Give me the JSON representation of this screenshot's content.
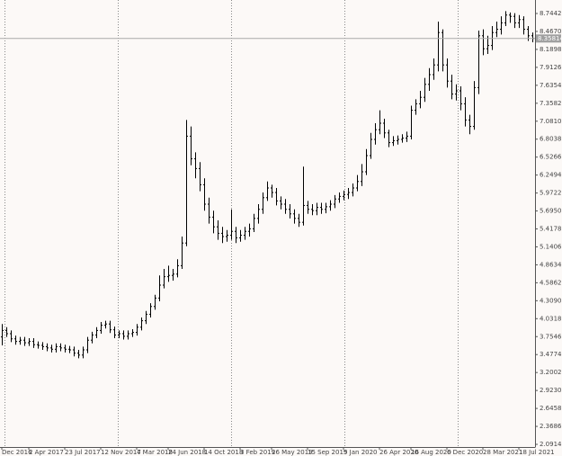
{
  "chart_data": {
    "type": "ohlc",
    "color": "#000000",
    "categories": [
      "Dec 2016",
      null,
      null,
      null,
      null,
      null,
      "2 Apr 2017",
      null,
      null,
      null,
      null,
      null,
      null,
      null,
      "23 Jul 2017",
      null,
      null,
      null,
      null,
      null,
      null,
      null,
      "12 Nov 2017",
      null,
      null,
      null,
      null,
      null,
      null,
      null,
      "4 Mar 2018",
      null,
      null,
      null,
      null,
      null,
      null,
      "24 Jun 2018",
      null,
      null,
      null,
      null,
      null,
      null,
      null,
      "14 Oct 2018",
      null,
      null,
      null,
      null,
      null,
      null,
      null,
      "3 Feb 2019",
      null,
      null,
      null,
      null,
      null,
      null,
      "26 May 2019",
      null,
      null,
      null,
      null,
      null,
      null,
      null,
      "15 Sep 2019",
      null,
      null,
      null,
      null,
      null,
      null,
      null,
      "5 Jan 2020",
      null,
      null,
      null,
      null,
      null,
      null,
      null,
      "26 Apr 2020",
      null,
      null,
      null,
      null,
      null,
      null,
      "16 Aug 2020",
      null,
      null,
      null,
      null,
      null,
      null,
      null,
      "6 Dec 2020",
      null,
      null,
      null,
      null,
      null,
      null,
      null,
      "28 Mar 2021",
      null,
      null,
      null,
      null,
      null,
      null,
      null,
      "18 Jul 2021",
      null,
      null,
      null
    ],
    "open": [
      3.75,
      3.85,
      3.8,
      3.72,
      3.68,
      3.7,
      3.66,
      3.68,
      3.63,
      3.62,
      3.6,
      3.58,
      3.56,
      3.6,
      3.58,
      3.56,
      3.55,
      3.5,
      3.47,
      3.55,
      3.7,
      3.78,
      3.85,
      3.93,
      3.95,
      3.86,
      3.78,
      3.8,
      3.76,
      3.8,
      3.82,
      3.9,
      4.0,
      4.1,
      4.22,
      4.35,
      4.55,
      4.68,
      4.7,
      4.72,
      4.85,
      5.2,
      6.85,
      6.5,
      6.35,
      6.1,
      5.8,
      5.6,
      5.45,
      5.35,
      5.3,
      5.32,
      5.38,
      5.28,
      5.32,
      5.38,
      5.42,
      5.58,
      5.72,
      5.9,
      6.05,
      5.98,
      5.85,
      5.8,
      5.72,
      5.65,
      5.58,
      5.52,
      5.78,
      5.72,
      5.7,
      5.75,
      5.72,
      5.76,
      5.8,
      5.88,
      5.92,
      5.95,
      5.98,
      6.05,
      6.15,
      6.3,
      6.55,
      6.8,
      6.95,
      7.05,
      6.9,
      6.75,
      6.78,
      6.8,
      6.82,
      6.85,
      7.25,
      7.35,
      7.45,
      7.65,
      7.8,
      7.95,
      8.45,
      7.95,
      7.7,
      7.5,
      7.55,
      7.35,
      7.1,
      7.0,
      7.6,
      8.4,
      8.2,
      8.25,
      8.45,
      8.5,
      8.6,
      8.72,
      8.7,
      8.6,
      8.65,
      8.5,
      8.4
    ],
    "high": [
      3.95,
      3.9,
      3.85,
      3.77,
      3.75,
      3.75,
      3.73,
      3.73,
      3.68,
      3.67,
      3.65,
      3.63,
      3.65,
      3.65,
      3.63,
      3.61,
      3.6,
      3.55,
      3.6,
      3.75,
      3.83,
      3.9,
      3.98,
      4.0,
      4.0,
      3.91,
      3.85,
      3.85,
      3.85,
      3.87,
      3.95,
      4.05,
      4.15,
      4.27,
      4.4,
      4.7,
      4.8,
      4.85,
      4.8,
      4.95,
      5.3,
      7.1,
      7.0,
      6.6,
      6.45,
      6.2,
      5.9,
      5.7,
      5.55,
      5.45,
      5.4,
      5.72,
      5.45,
      5.4,
      5.45,
      5.5,
      5.65,
      5.8,
      5.98,
      6.15,
      6.1,
      6.05,
      5.92,
      5.88,
      5.8,
      5.72,
      5.65,
      6.38,
      5.85,
      5.8,
      5.82,
      5.82,
      5.82,
      5.86,
      5.94,
      5.98,
      6.01,
      6.05,
      6.12,
      6.25,
      6.42,
      6.65,
      6.9,
      7.05,
      7.25,
      7.12,
      6.95,
      6.85,
      6.86,
      6.88,
      6.92,
      7.32,
      7.42,
      7.55,
      7.75,
      7.9,
      8.05,
      8.62,
      8.5,
      8.05,
      7.8,
      7.65,
      7.62,
      7.45,
      7.18,
      7.7,
      8.48,
      8.5,
      8.4,
      8.55,
      8.62,
      8.7,
      8.78,
      8.76,
      8.75,
      8.72,
      8.7,
      8.55,
      8.45
    ],
    "low": [
      3.62,
      3.75,
      3.67,
      3.63,
      3.63,
      3.61,
      3.61,
      3.58,
      3.57,
      3.55,
      3.53,
      3.51,
      3.51,
      3.53,
      3.51,
      3.5,
      3.45,
      3.42,
      3.42,
      3.5,
      3.65,
      3.73,
      3.8,
      3.88,
      3.81,
      3.73,
      3.73,
      3.71,
      3.71,
      3.75,
      3.77,
      3.85,
      3.95,
      4.05,
      4.17,
      4.3,
      4.5,
      4.6,
      4.62,
      4.67,
      4.8,
      5.15,
      6.4,
      6.2,
      6.0,
      5.7,
      5.5,
      5.35,
      5.25,
      5.2,
      5.22,
      5.25,
      5.2,
      5.22,
      5.25,
      5.3,
      5.37,
      5.5,
      5.65,
      5.85,
      5.9,
      5.78,
      5.72,
      5.65,
      5.58,
      5.5,
      5.45,
      5.47,
      5.65,
      5.63,
      5.63,
      5.65,
      5.66,
      5.7,
      5.74,
      5.82,
      5.86,
      5.88,
      5.92,
      6.0,
      6.08,
      6.25,
      6.5,
      6.72,
      6.88,
      6.82,
      6.68,
      6.7,
      6.72,
      6.75,
      6.76,
      6.8,
      7.18,
      7.28,
      7.38,
      7.55,
      7.72,
      7.85,
      7.85,
      7.6,
      7.42,
      7.4,
      7.25,
      7.0,
      6.88,
      6.95,
      7.5,
      8.1,
      8.12,
      8.18,
      8.38,
      8.42,
      8.55,
      8.6,
      8.52,
      8.52,
      8.42,
      8.32,
      8.3
    ],
    "close": [
      3.85,
      3.8,
      3.72,
      3.68,
      3.7,
      3.66,
      3.68,
      3.63,
      3.62,
      3.6,
      3.58,
      3.56,
      3.6,
      3.58,
      3.56,
      3.55,
      3.5,
      3.47,
      3.55,
      3.7,
      3.78,
      3.85,
      3.93,
      3.95,
      3.86,
      3.78,
      3.8,
      3.76,
      3.8,
      3.82,
      3.9,
      4.0,
      4.1,
      4.22,
      4.35,
      4.55,
      4.68,
      4.7,
      4.72,
      4.85,
      5.2,
      6.85,
      6.5,
      6.35,
      6.1,
      5.8,
      5.6,
      5.45,
      5.35,
      5.3,
      5.32,
      5.38,
      5.28,
      5.32,
      5.38,
      5.42,
      5.58,
      5.72,
      5.9,
      6.05,
      5.98,
      5.85,
      5.8,
      5.72,
      5.65,
      5.58,
      5.52,
      5.78,
      5.72,
      5.7,
      5.75,
      5.72,
      5.76,
      5.8,
      5.88,
      5.92,
      5.95,
      5.98,
      6.05,
      6.15,
      6.3,
      6.55,
      6.8,
      6.95,
      7.05,
      6.9,
      6.75,
      6.78,
      6.8,
      6.82,
      6.85,
      7.25,
      7.35,
      7.45,
      7.65,
      7.8,
      7.95,
      8.45,
      7.95,
      7.7,
      7.5,
      7.55,
      7.35,
      7.1,
      7.0,
      7.6,
      8.4,
      8.2,
      8.25,
      8.45,
      8.5,
      8.6,
      8.72,
      8.7,
      8.6,
      8.65,
      8.5,
      8.4,
      8.36
    ],
    "current_price": 8.35814,
    "ylim": [
      2.0502,
      8.9525
    ],
    "yticks": [
      {
        "value": 8.7442,
        "label": "8.74420"
      },
      {
        "value": 8.467,
        "label": "8.46700"
      },
      {
        "value": 8.1898,
        "label": "8.18980"
      },
      {
        "value": 7.9126,
        "label": "7.91260"
      },
      {
        "value": 7.6354,
        "label": "7.63540"
      },
      {
        "value": 7.3582,
        "label": "7.35820"
      },
      {
        "value": 7.081,
        "label": "7.08100"
      },
      {
        "value": 6.8038,
        "label": "6.80380"
      },
      {
        "value": 6.5266,
        "label": "6.52660"
      },
      {
        "value": 6.2494,
        "label": "6.24940"
      },
      {
        "value": 5.9722,
        "label": "5.97220"
      },
      {
        "value": 5.695,
        "label": "5.69500"
      },
      {
        "value": 5.4178,
        "label": "5.41780"
      },
      {
        "value": 5.1406,
        "label": "5.14060"
      },
      {
        "value": 4.8634,
        "label": "4.86340"
      },
      {
        "value": 4.5862,
        "label": "4.58620"
      },
      {
        "value": 4.309,
        "label": "4.30900"
      },
      {
        "value": 4.0318,
        "label": "4.03180"
      },
      {
        "value": 3.7546,
        "label": "3.75460"
      },
      {
        "value": 3.4774,
        "label": "3.47740"
      },
      {
        "value": 3.2002,
        "label": "3.20020"
      },
      {
        "value": 2.923,
        "label": "2.92300"
      },
      {
        "value": 2.6458,
        "label": "2.64580"
      },
      {
        "value": 2.3686,
        "label": "2.36860"
      },
      {
        "value": 2.0914,
        "label": "2.09140"
      }
    ]
  }
}
